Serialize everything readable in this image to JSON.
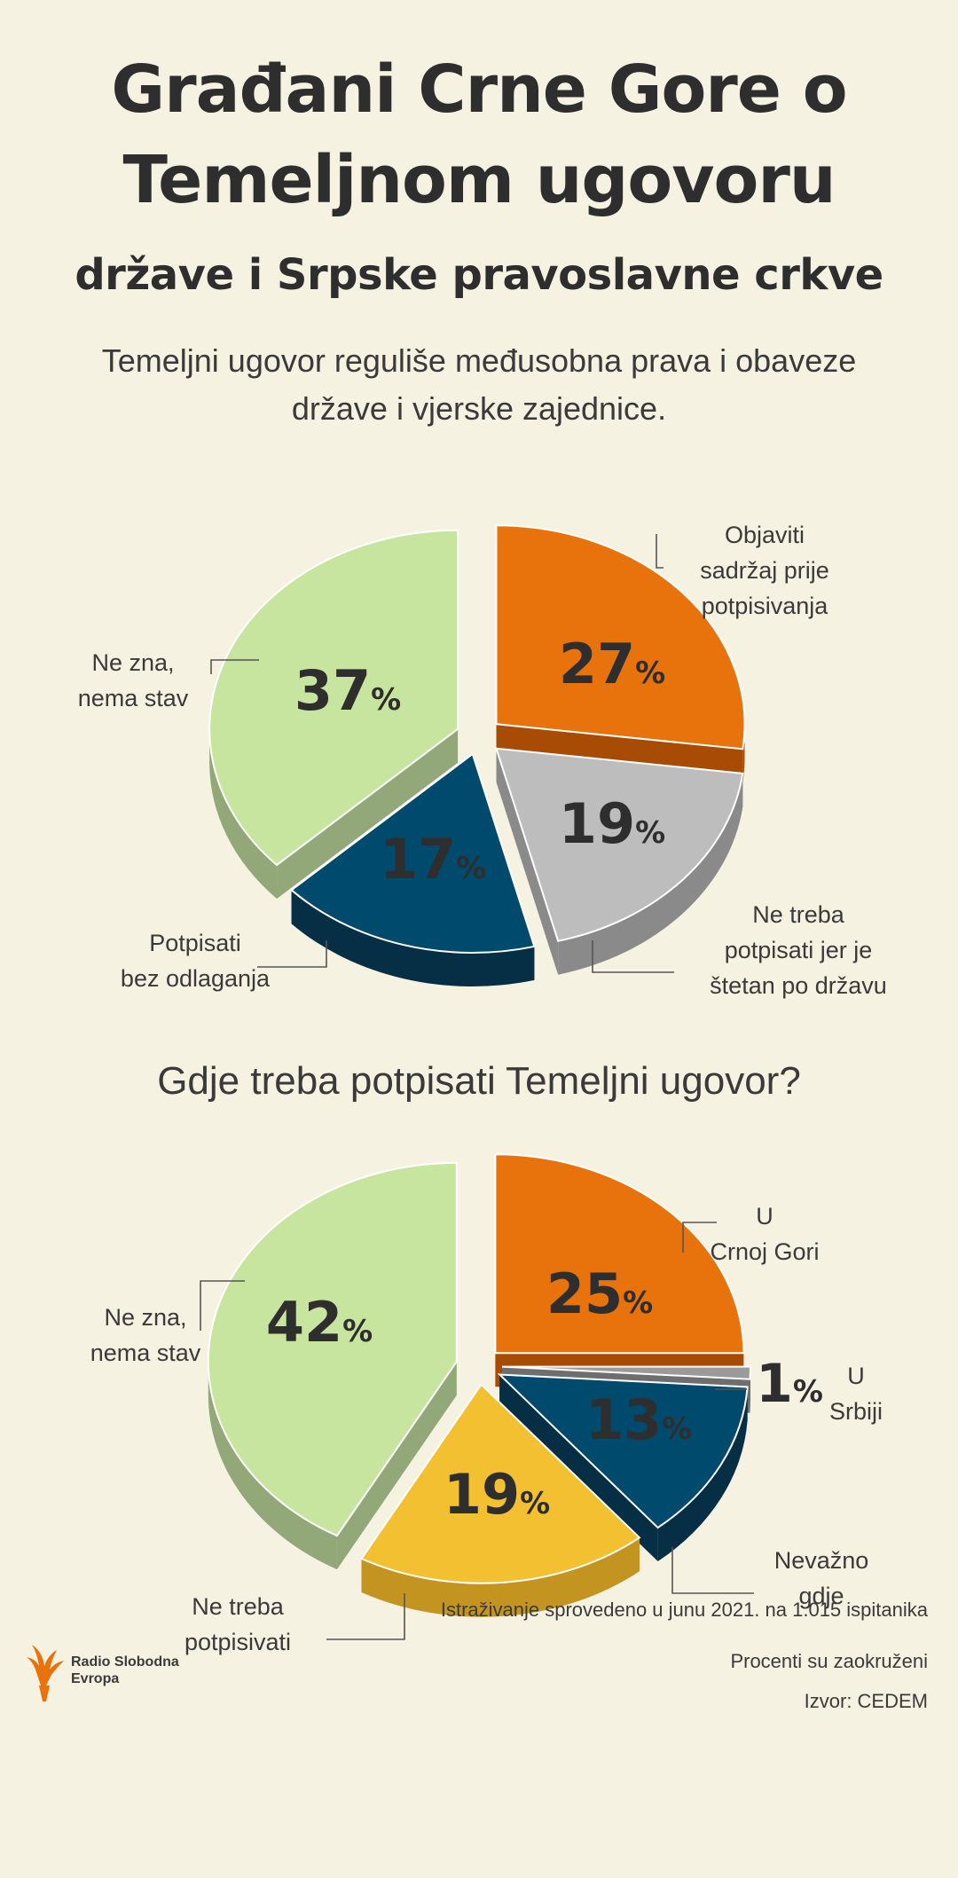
{
  "header": {
    "title_line1": "Građani Crne Gore o",
    "title_line2": "Temeljnom ugovoru",
    "subtitle": "države i Srpske pravoslavne crkve",
    "intro_line1": "Temeljni ugovor reguliše međusobna prava i obaveze",
    "intro_line2": "države i vjerske zajednice."
  },
  "question": "Gdje treba potpisati Temeljni ugovor?",
  "chart_data": [
    {
      "type": "pie",
      "title": "",
      "unit": "%",
      "slices": [
        {
          "label_lines": [
            "Objaviti",
            "sadržaj prije",
            "potpisivanja"
          ],
          "value": 27,
          "color": "#e8720c",
          "side": "#a84c05"
        },
        {
          "label_lines": [
            "Ne treba",
            "potpisati jer je",
            "štetan po državu"
          ],
          "value": 19,
          "color": "#bdbdbd",
          "side": "#8a8a8a"
        },
        {
          "label_lines": [
            "Potpisati",
            "bez odlaganja"
          ],
          "value": 17,
          "color": "#004a6e",
          "side": "#062e45"
        },
        {
          "label_lines": [
            "Ne zna,",
            "nema stav"
          ],
          "value": 37,
          "color": "#c8e5a0",
          "side": "#92a878"
        }
      ]
    },
    {
      "type": "pie",
      "title": "",
      "unit": "%",
      "slices": [
        {
          "label_lines": [
            "U",
            "Crnoj Gori"
          ],
          "value": 25,
          "color": "#e8720c",
          "side": "#a84c05"
        },
        {
          "label_lines": [
            "U",
            "Srbiji"
          ],
          "value": 1,
          "color": "#9a9a9a",
          "side": "#6e6e6e"
        },
        {
          "label_lines": [
            "Nevažno",
            "gdje"
          ],
          "value": 13,
          "color": "#004a6e",
          "side": "#062e45"
        },
        {
          "label_lines": [
            "Ne treba",
            "potpisivati"
          ],
          "value": 19,
          "color": "#f2c030",
          "side": "#c39520"
        },
        {
          "label_lines": [
            "Ne zna,",
            "nema stav"
          ],
          "value": 42,
          "color": "#c8e5a0",
          "side": "#92a878"
        }
      ]
    }
  ],
  "footer": {
    "survey": "Istraživanje sprovedeno u junu 2021. na 1.015 ispitanika",
    "rounding": "Procenti su zaokruženi",
    "source": "Izvor: CEDEM"
  },
  "logo": {
    "line1": "Radio Slobodna",
    "line2": "Evropa",
    "color": "#e8720c"
  }
}
